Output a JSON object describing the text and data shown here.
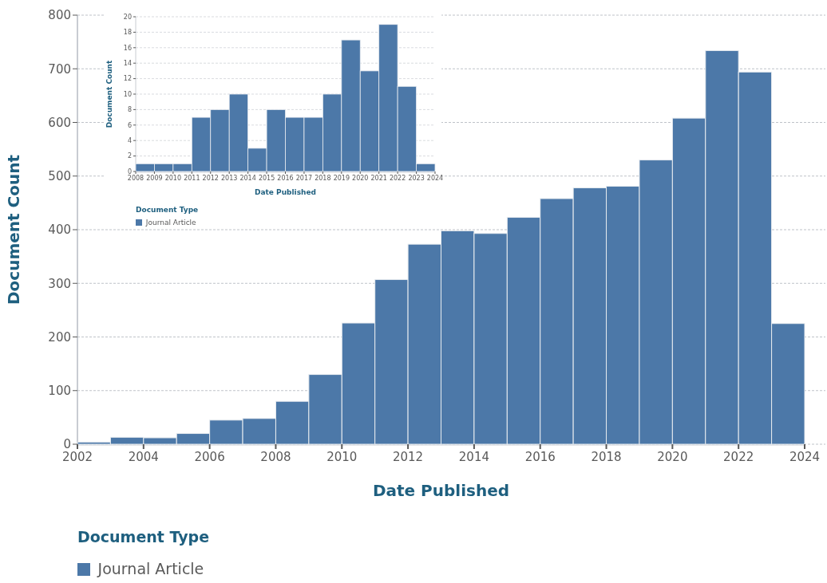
{
  "chart_data": [
    {
      "type": "histogram",
      "xlabel": "Date Published",
      "ylabel": "Document Count",
      "legend_title": "Document Type",
      "legend": "bottom left",
      "grid": "y",
      "bins": [
        2002,
        2003,
        2004,
        2005,
        2006,
        2007,
        2008,
        2009,
        2010,
        2011,
        2012,
        2013,
        2014,
        2015,
        2016,
        2017,
        2018,
        2019,
        2020,
        2021,
        2022,
        2023,
        2024
      ],
      "series": [
        {
          "name": "Journal Article",
          "color": "#4c78a8",
          "values": [
            4,
            13,
            12,
            20,
            45,
            48,
            80,
            130,
            226,
            307,
            373,
            398,
            393,
            423,
            458,
            478,
            481,
            530,
            608,
            734,
            694,
            225
          ]
        }
      ],
      "xlim": [
        2002,
        2024
      ],
      "xticks": [
        2002,
        2004,
        2006,
        2008,
        2010,
        2012,
        2014,
        2016,
        2018,
        2020,
        2022,
        2024
      ],
      "ylim": [
        0,
        800
      ],
      "yticks": [
        0,
        100,
        200,
        300,
        400,
        500,
        600,
        700,
        800
      ]
    },
    {
      "type": "histogram",
      "xlabel": "Date Published",
      "ylabel": "Document Count",
      "legend_title": "Document Type",
      "legend": "bottom left",
      "grid": "y",
      "bins": [
        2008,
        2009,
        2010,
        2011,
        2012,
        2013,
        2014,
        2015,
        2016,
        2017,
        2018,
        2019,
        2020,
        2021,
        2022,
        2023,
        2024
      ],
      "series": [
        {
          "name": "Journal Article",
          "color": "#4c78a8",
          "values": [
            1,
            1,
            1,
            7,
            8,
            10,
            3,
            8,
            7,
            7,
            10,
            17,
            13,
            19,
            11,
            1
          ]
        }
      ],
      "xlim": [
        2008,
        2024
      ],
      "xticks": [
        2008,
        2009,
        2010,
        2011,
        2012,
        2013,
        2014,
        2015,
        2016,
        2017,
        2018,
        2019,
        2020,
        2021,
        2022,
        2023,
        2024
      ],
      "ylim": [
        0,
        20
      ],
      "yticks": [
        0,
        2,
        4,
        6,
        8,
        10,
        12,
        14,
        16,
        18,
        20
      ]
    }
  ]
}
